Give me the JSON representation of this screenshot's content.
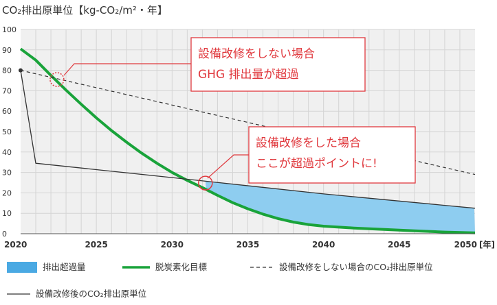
{
  "chart_data": {
    "type": "line",
    "title": "CO₂排出原単位【kg-CO₂/m²・年】",
    "x_unit": "年",
    "xlim": [
      2020,
      2050
    ],
    "ylim": [
      0,
      100
    ],
    "x_ticks": [
      "2020",
      "2025",
      "2030",
      "2035",
      "2040",
      "2045",
      "2050"
    ],
    "y_ticks": [
      "0",
      "10",
      "20",
      "30",
      "40",
      "50",
      "60",
      "70",
      "80",
      "90",
      "100"
    ],
    "series": [
      {
        "name": "脱炭素化目標",
        "style": "solid-thick",
        "color": "#19a33a",
        "points": [
          [
            2020,
            90.5
          ],
          [
            2021,
            85
          ],
          [
            2022,
            77.5
          ],
          [
            2023,
            70.3
          ],
          [
            2024,
            63.4
          ],
          [
            2025,
            56.7
          ],
          [
            2026,
            50.5
          ],
          [
            2027,
            44.8
          ],
          [
            2028,
            39.4
          ],
          [
            2029,
            34.5
          ],
          [
            2030,
            30.0
          ],
          [
            2031,
            26.1
          ],
          [
            2032,
            22.6
          ],
          [
            2033,
            18.8
          ],
          [
            2034,
            15.2
          ],
          [
            2035,
            12.2
          ],
          [
            2036,
            9.6
          ],
          [
            2037,
            7.4
          ],
          [
            2038,
            5.7
          ],
          [
            2039,
            4.5
          ],
          [
            2040,
            3.7
          ],
          [
            2042,
            2.8
          ],
          [
            2044,
            2.1
          ],
          [
            2046,
            1.4
          ],
          [
            2048,
            0.8
          ],
          [
            2050,
            0.4
          ]
        ]
      },
      {
        "name": "設備改修をしない場合のCO₂排出原単位",
        "style": "dashed",
        "color": "#333333",
        "points": [
          [
            2020,
            80
          ],
          [
            2050,
            29
          ]
        ]
      },
      {
        "name": "設備改修後のCO₂排出原単位",
        "style": "solid-thin",
        "color": "#333333",
        "points": [
          [
            2020,
            80
          ],
          [
            2021,
            34.5
          ],
          [
            2030,
            27.5
          ],
          [
            2040,
            19.5
          ],
          [
            2050,
            12.5
          ]
        ]
      }
    ],
    "area": {
      "name": "排出超過量",
      "color": "#8ecdf0",
      "between": [
        "設備改修後のCO₂排出原単位",
        "脱炭素化目標"
      ],
      "from_x": 2032.2
    },
    "annotations": [
      {
        "lines": [
          "設備改修をしない場合",
          "GHG 排出量が超過"
        ],
        "marker": {
          "x": 2022.4,
          "y": 75.5,
          "style": "dotted-circle"
        }
      },
      {
        "lines": [
          "設備改修をした場合",
          "ここが超過ポイントに!"
        ],
        "marker": {
          "x": 2032.2,
          "y": 24.8,
          "style": "solid-circle"
        }
      }
    ],
    "grid": {
      "x_minor_step": 1,
      "y_step": 10
    }
  },
  "legend": [
    {
      "key": "area",
      "label": "排出超過量",
      "swatch": "block",
      "color": "#4aa9e3"
    },
    {
      "key": "target",
      "label": "脱炭素化目標",
      "swatch": "thick-line",
      "color": "#19a33a"
    },
    {
      "key": "no-renovation",
      "label": "設備改修をしない場合のCO₂排出原単位",
      "swatch": "dashed-line",
      "color": "#333333"
    },
    {
      "key": "after-renovation",
      "label": "設備改修後のCO₂排出原単位",
      "swatch": "thin-line",
      "color": "#333333"
    }
  ],
  "colors": {
    "callout": "#e0393e",
    "grid": "#d4d4d4",
    "plot_bg": "#f0f0f0"
  }
}
